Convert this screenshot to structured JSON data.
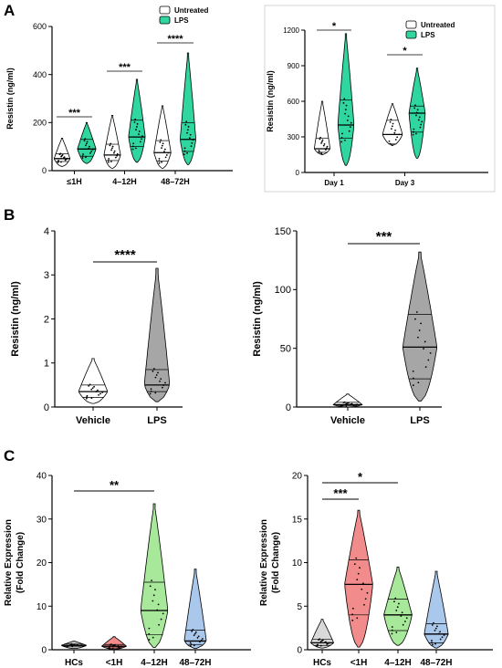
{
  "panel_labels": [
    "A",
    "B",
    "C"
  ],
  "chart_data": [
    {
      "id": "A1",
      "type": "violin",
      "ylabel": "Resistin (ng/ml)",
      "ylim": [
        0,
        600
      ],
      "yticks": [
        0,
        200,
        400,
        600
      ],
      "categories": [
        "≤1H",
        "4–12H",
        "48–72H"
      ],
      "legend": [
        "Untreated",
        "LPS"
      ],
      "legend_position": "top-center",
      "series": [
        {
          "name": "Untreated",
          "color": "#ffffff",
          "min": [
            18,
            10,
            10
          ],
          "q1": [
            38,
            42,
            40
          ],
          "median": [
            50,
            65,
            75
          ],
          "q3": [
            70,
            110,
            125
          ],
          "max": [
            135,
            230,
            270
          ]
        },
        {
          "name": "LPS",
          "color": "#2fd6a0",
          "min": [
            30,
            35,
            25
          ],
          "q1": [
            60,
            100,
            80
          ],
          "median": [
            90,
            140,
            130
          ],
          "q3": [
            130,
            210,
            200
          ],
          "max": [
            200,
            380,
            490
          ]
        }
      ],
      "significance": [
        {
          "category": "≤1H",
          "label": "***"
        },
        {
          "category": "4–12H",
          "label": "***"
        },
        {
          "category": "48–72H",
          "label": "****"
        }
      ]
    },
    {
      "id": "A2",
      "type": "violin",
      "ylabel": "Resistin (ng/ml)",
      "ylim": [
        0,
        1200
      ],
      "yticks": [
        0,
        300,
        600,
        900,
        1200
      ],
      "categories": [
        "Day 1",
        "Day 3"
      ],
      "legend": [
        "Untreated",
        "LPS"
      ],
      "legend_position": "top-right",
      "series": [
        {
          "name": "Untreated",
          "color": "#ffffff",
          "min": [
            150,
            230
          ],
          "q1": [
            170,
            240
          ],
          "median": [
            200,
            320
          ],
          "q3": [
            290,
            440
          ],
          "max": [
            600,
            580
          ]
        },
        {
          "name": "LPS",
          "color": "#2fd6a0",
          "min": [
            60,
            120
          ],
          "q1": [
            290,
            340
          ],
          "median": [
            400,
            500
          ],
          "q3": [
            610,
            560
          ],
          "max": [
            1170,
            880
          ]
        }
      ],
      "significance": [
        {
          "category": "Day 1",
          "label": "*"
        },
        {
          "category": "Day 3",
          "label": "*"
        }
      ]
    },
    {
      "id": "B1",
      "type": "violin",
      "ylabel": "Resistin (ng/ml)",
      "ylim": [
        0,
        4
      ],
      "yticks": [
        0,
        1,
        2,
        3,
        4
      ],
      "categories": [
        "Vehicle",
        "LPS"
      ],
      "series": [
        {
          "name": "Vehicle",
          "color": "#ffffff",
          "min": [
            0.08
          ],
          "q1": [
            0.22
          ],
          "median": [
            0.35
          ],
          "q3": [
            0.5
          ],
          "max": [
            1.1
          ]
        },
        {
          "name": "LPS",
          "color": "#a6a6a6",
          "min": [
            0.12
          ],
          "q1": [
            0.35
          ],
          "median": [
            0.5
          ],
          "q3": [
            0.85
          ],
          "max": [
            3.15
          ]
        }
      ],
      "significance": [
        {
          "label": "****"
        }
      ]
    },
    {
      "id": "B2",
      "type": "violin",
      "ylabel": "Resistin (ng/ml)",
      "ylim": [
        0,
        150
      ],
      "yticks": [
        0,
        50,
        100,
        150
      ],
      "categories": [
        "Vehicle",
        "LPS"
      ],
      "series": [
        {
          "name": "Vehicle",
          "color": "#ffffff",
          "min": [
            0
          ],
          "q1": [
            1
          ],
          "median": [
            2
          ],
          "q3": [
            4
          ],
          "max": [
            11
          ]
        },
        {
          "name": "LPS",
          "color": "#a6a6a6",
          "min": [
            5
          ],
          "q1": [
            24
          ],
          "median": [
            51
          ],
          "q3": [
            79
          ],
          "max": [
            132
          ]
        }
      ],
      "significance": [
        {
          "label": "***"
        }
      ]
    },
    {
      "id": "C1",
      "type": "violin",
      "ylabel": "Relative Expression",
      "ylabel2": "(Fold Change)",
      "ylim": [
        0,
        40
      ],
      "yticks": [
        0,
        10,
        20,
        30,
        40
      ],
      "categories": [
        "HCs",
        "<1H",
        "4–12H",
        "48–72H"
      ],
      "series": [
        {
          "name": "HCs",
          "color": "#bfbfbf",
          "min": [
            0.3
          ],
          "q1": [
            0.8
          ],
          "median": [
            1.0
          ],
          "q3": [
            1.3
          ],
          "max": [
            2.0
          ]
        },
        {
          "name": "<1H",
          "color": "#f28b8b",
          "min": [
            0.1
          ],
          "q1": [
            0.4
          ],
          "median": [
            0.8
          ],
          "q3": [
            1.2
          ],
          "max": [
            3.0
          ]
        },
        {
          "name": "4–12H",
          "color": "#a8e89a",
          "min": [
            0.5
          ],
          "q1": [
            3.5
          ],
          "median": [
            9.0
          ],
          "q3": [
            15.5
          ],
          "max": [
            33.5
          ]
        },
        {
          "name": "48–72H",
          "color": "#a9c8ec",
          "min": [
            0.3
          ],
          "q1": [
            1.2
          ],
          "median": [
            2.0
          ],
          "q3": [
            4.5
          ],
          "max": [
            18.5
          ]
        }
      ],
      "significance": [
        {
          "from": "HCs",
          "to": "4–12H",
          "label": "**"
        }
      ]
    },
    {
      "id": "C2",
      "type": "violin",
      "ylabel": "Relative Expression",
      "ylabel2": "(Fold Change)",
      "ylim": [
        0,
        20
      ],
      "yticks": [
        0,
        5,
        10,
        15,
        20
      ],
      "categories": [
        "HCs",
        "<1H",
        "4–12H",
        "48–72H"
      ],
      "series": [
        {
          "name": "HCs",
          "color": "#d9d9d9",
          "min": [
            0.2
          ],
          "q1": [
            0.5
          ],
          "median": [
            0.8
          ],
          "q3": [
            1.2
          ],
          "max": [
            3.5
          ]
        },
        {
          "name": "<1H",
          "color": "#f28b8b",
          "min": [
            0.3
          ],
          "q1": [
            4.0
          ],
          "median": [
            7.5
          ],
          "q3": [
            10.3
          ],
          "max": [
            16.0
          ]
        },
        {
          "name": "4–12H",
          "color": "#a8e89a",
          "min": [
            0.5
          ],
          "q1": [
            2.2
          ],
          "median": [
            4.0
          ],
          "q3": [
            5.8
          ],
          "max": [
            9.5
          ]
        },
        {
          "name": "48–72H",
          "color": "#a9c8ec",
          "min": [
            0.2
          ],
          "q1": [
            0.8
          ],
          "median": [
            1.8
          ],
          "q3": [
            3.0
          ],
          "max": [
            9.0
          ]
        }
      ],
      "significance": [
        {
          "from": "HCs",
          "to": "<1H",
          "label": "***"
        },
        {
          "from": "HCs",
          "to": "4–12H",
          "label": "*"
        }
      ]
    }
  ]
}
